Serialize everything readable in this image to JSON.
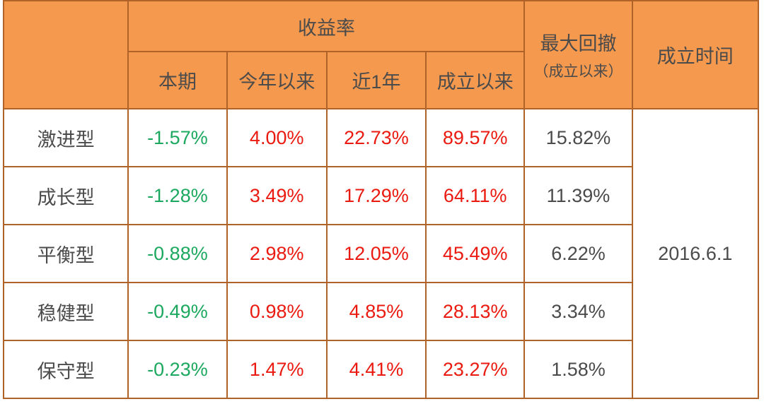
{
  "colors": {
    "header_bg": "#F4994E",
    "border": "#B06328",
    "text_dark": "#4B4B4B",
    "positive_red": "#EB1A10",
    "negative_green": "#1CA85F",
    "cell_bg": "#FFFFFF"
  },
  "table": {
    "header": {
      "corner": "",
      "returns_group": "收益率",
      "sub_columns": [
        "本期",
        "今年以来",
        "近1年",
        "成立以来"
      ],
      "max_drawdown_line1": "最大回撤",
      "max_drawdown_line2": "（成立以来）",
      "inception_col": "成立时间"
    },
    "rows": [
      {
        "label": "激进型",
        "current": "-1.57%",
        "ytd": "4.00%",
        "one_year": "22.73%",
        "since_inception": "89.57%",
        "max_drawdown": "15.82%"
      },
      {
        "label": "成长型",
        "current": "-1.28%",
        "ytd": "3.49%",
        "one_year": "17.29%",
        "since_inception": "64.11%",
        "max_drawdown": "11.39%"
      },
      {
        "label": "平衡型",
        "current": "-0.88%",
        "ytd": "2.98%",
        "one_year": "12.05%",
        "since_inception": "45.49%",
        "max_drawdown": "6.22%"
      },
      {
        "label": "稳健型",
        "current": "-0.49%",
        "ytd": "0.98%",
        "one_year": "4.85%",
        "since_inception": "28.13%",
        "max_drawdown": "3.34%"
      },
      {
        "label": "保守型",
        "current": "-0.23%",
        "ytd": "1.47%",
        "one_year": "4.41%",
        "since_inception": "23.27%",
        "max_drawdown": "1.58%"
      }
    ],
    "inception_date": "2016.6.1"
  },
  "chart_data": {
    "type": "table",
    "title": "",
    "column_group": {
      "label": "收益率",
      "spans": [
        "本期",
        "今年以来",
        "近1年",
        "成立以来"
      ]
    },
    "columns": [
      "",
      "本期",
      "今年以来",
      "近1年",
      "成立以来",
      "最大回撤（成立以来）",
      "成立时间"
    ],
    "rows": [
      [
        "激进型",
        "-1.57%",
        "4.00%",
        "22.73%",
        "89.57%",
        "15.82%",
        "2016.6.1"
      ],
      [
        "成长型",
        "-1.28%",
        "3.49%",
        "17.29%",
        "64.11%",
        "11.39%",
        "2016.6.1"
      ],
      [
        "平衡型",
        "-0.88%",
        "2.98%",
        "12.05%",
        "45.49%",
        "6.22%",
        "2016.6.1"
      ],
      [
        "稳健型",
        "-0.49%",
        "0.98%",
        "4.85%",
        "28.13%",
        "3.34%",
        "2016.6.1"
      ],
      [
        "保守型",
        "-0.23%",
        "1.47%",
        "4.41%",
        "23.27%",
        "1.58%",
        "2016.6.1"
      ]
    ],
    "value_color_rules": {
      "本期": "green (negative values)",
      "今年以来/近1年/成立以来": "red (positive values)",
      "最大回撤": "dark gray",
      "成立时间": "dark gray"
    }
  }
}
